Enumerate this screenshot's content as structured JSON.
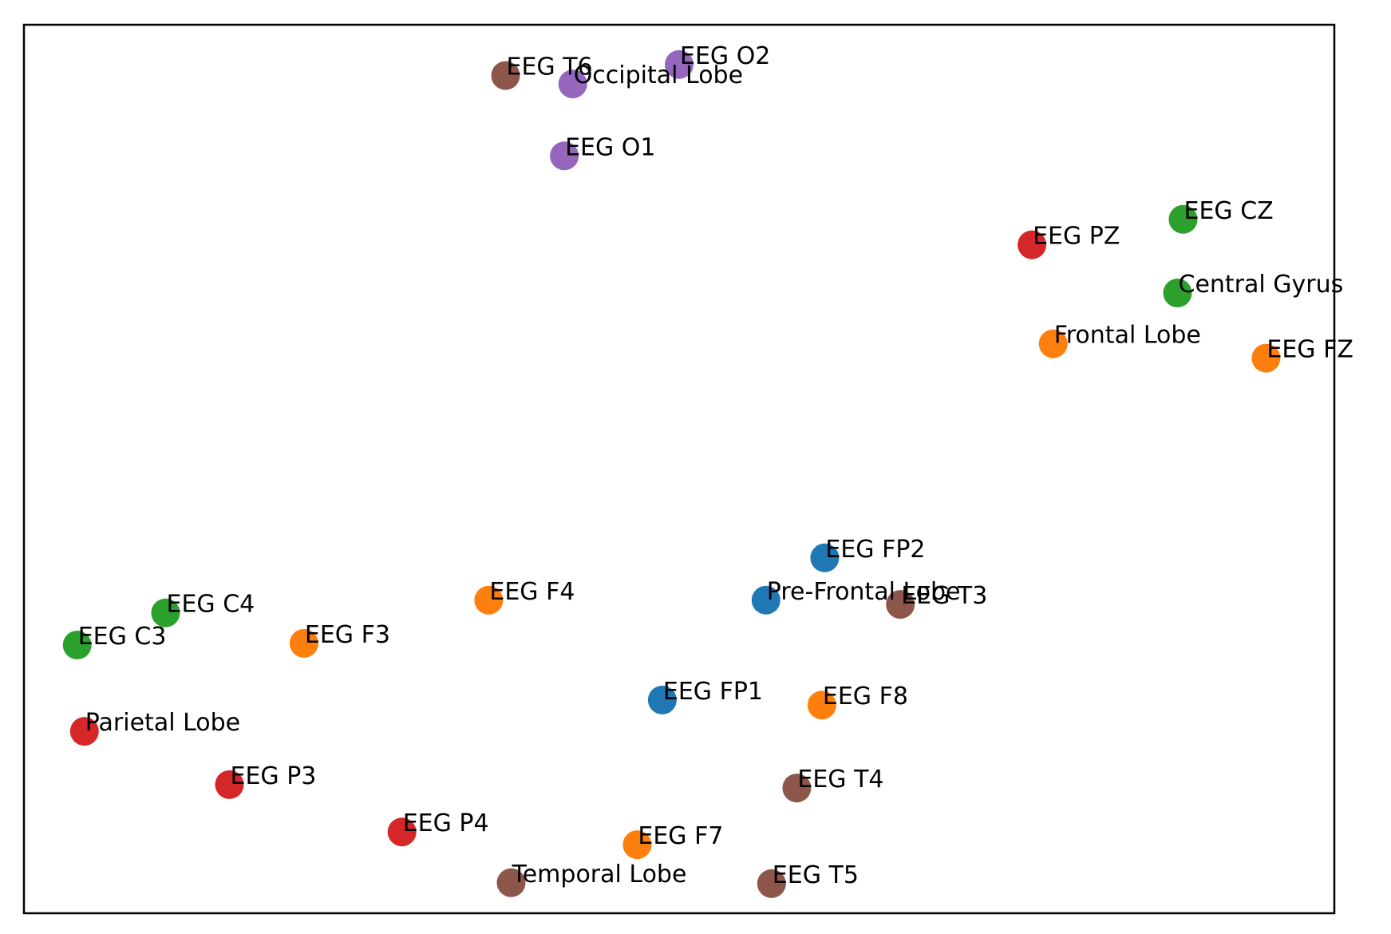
{
  "chart_data": {
    "type": "scatter",
    "title": "",
    "xlabel": "",
    "ylabel": "",
    "xlim": [
      -0.9,
      22.5
    ],
    "ylim": [
      0.6,
      11.1
    ],
    "grid": false,
    "axis_ticks": false,
    "points": [
      {
        "label": "EEG T6",
        "x": 7.7,
        "y": 10.5,
        "color": "#8c564b"
      },
      {
        "label": "Occipital Lobe",
        "x": 8.9,
        "y": 10.4,
        "color": "#9467bd"
      },
      {
        "label": "EEG O2",
        "x": 10.8,
        "y": 10.63,
        "color": "#9467bd"
      },
      {
        "label": "EEG O1",
        "x": 8.75,
        "y": 9.55,
        "color": "#9467bd"
      },
      {
        "label": "EEG CZ",
        "x": 19.8,
        "y": 8.8,
        "color": "#2ca02c"
      },
      {
        "label": "EEG PZ",
        "x": 17.1,
        "y": 8.5,
        "color": "#d62728"
      },
      {
        "label": "Central Gyrus",
        "x": 19.7,
        "y": 7.93,
        "color": "#2ca02c"
      },
      {
        "label": "Frontal Lobe",
        "x": 17.48,
        "y": 7.33,
        "color": "#ff7f0e"
      },
      {
        "label": "EEG FZ",
        "x": 21.28,
        "y": 7.16,
        "color": "#ff7f0e"
      },
      {
        "label": "EEG FP2",
        "x": 13.4,
        "y": 4.8,
        "color": "#1f77b4"
      },
      {
        "label": "Pre-Frontal Lobe",
        "x": 12.35,
        "y": 4.3,
        "color": "#1f77b4"
      },
      {
        "label": "EEG T3",
        "x": 14.75,
        "y": 4.25,
        "color": "#8c564b"
      },
      {
        "label": "EEG C4",
        "x": 1.63,
        "y": 4.15,
        "color": "#2ca02c"
      },
      {
        "label": "EEG F4",
        "x": 7.4,
        "y": 4.3,
        "color": "#ff7f0e"
      },
      {
        "label": "EEG C3",
        "x": 0.05,
        "y": 3.77,
        "color": "#2ca02c"
      },
      {
        "label": "EEG F3",
        "x": 4.1,
        "y": 3.79,
        "color": "#ff7f0e"
      },
      {
        "label": "EEG FP1",
        "x": 10.5,
        "y": 3.12,
        "color": "#1f77b4"
      },
      {
        "label": "EEG F8",
        "x": 13.35,
        "y": 3.06,
        "color": "#ff7f0e"
      },
      {
        "label": "Parietal Lobe",
        "x": 0.18,
        "y": 2.75,
        "color": "#d62728"
      },
      {
        "label": "EEG P3",
        "x": 2.77,
        "y": 2.12,
        "color": "#d62728"
      },
      {
        "label": "EEG T4",
        "x": 12.9,
        "y": 2.08,
        "color": "#8c564b"
      },
      {
        "label": "EEG P4",
        "x": 5.85,
        "y": 1.56,
        "color": "#d62728"
      },
      {
        "label": "EEG F7",
        "x": 10.05,
        "y": 1.41,
        "color": "#ff7f0e"
      },
      {
        "label": "Temporal Lobe",
        "x": 7.8,
        "y": 0.96,
        "color": "#8c564b"
      },
      {
        "label": "EEG T5",
        "x": 12.45,
        "y": 0.95,
        "color": "#8c564b"
      }
    ]
  }
}
